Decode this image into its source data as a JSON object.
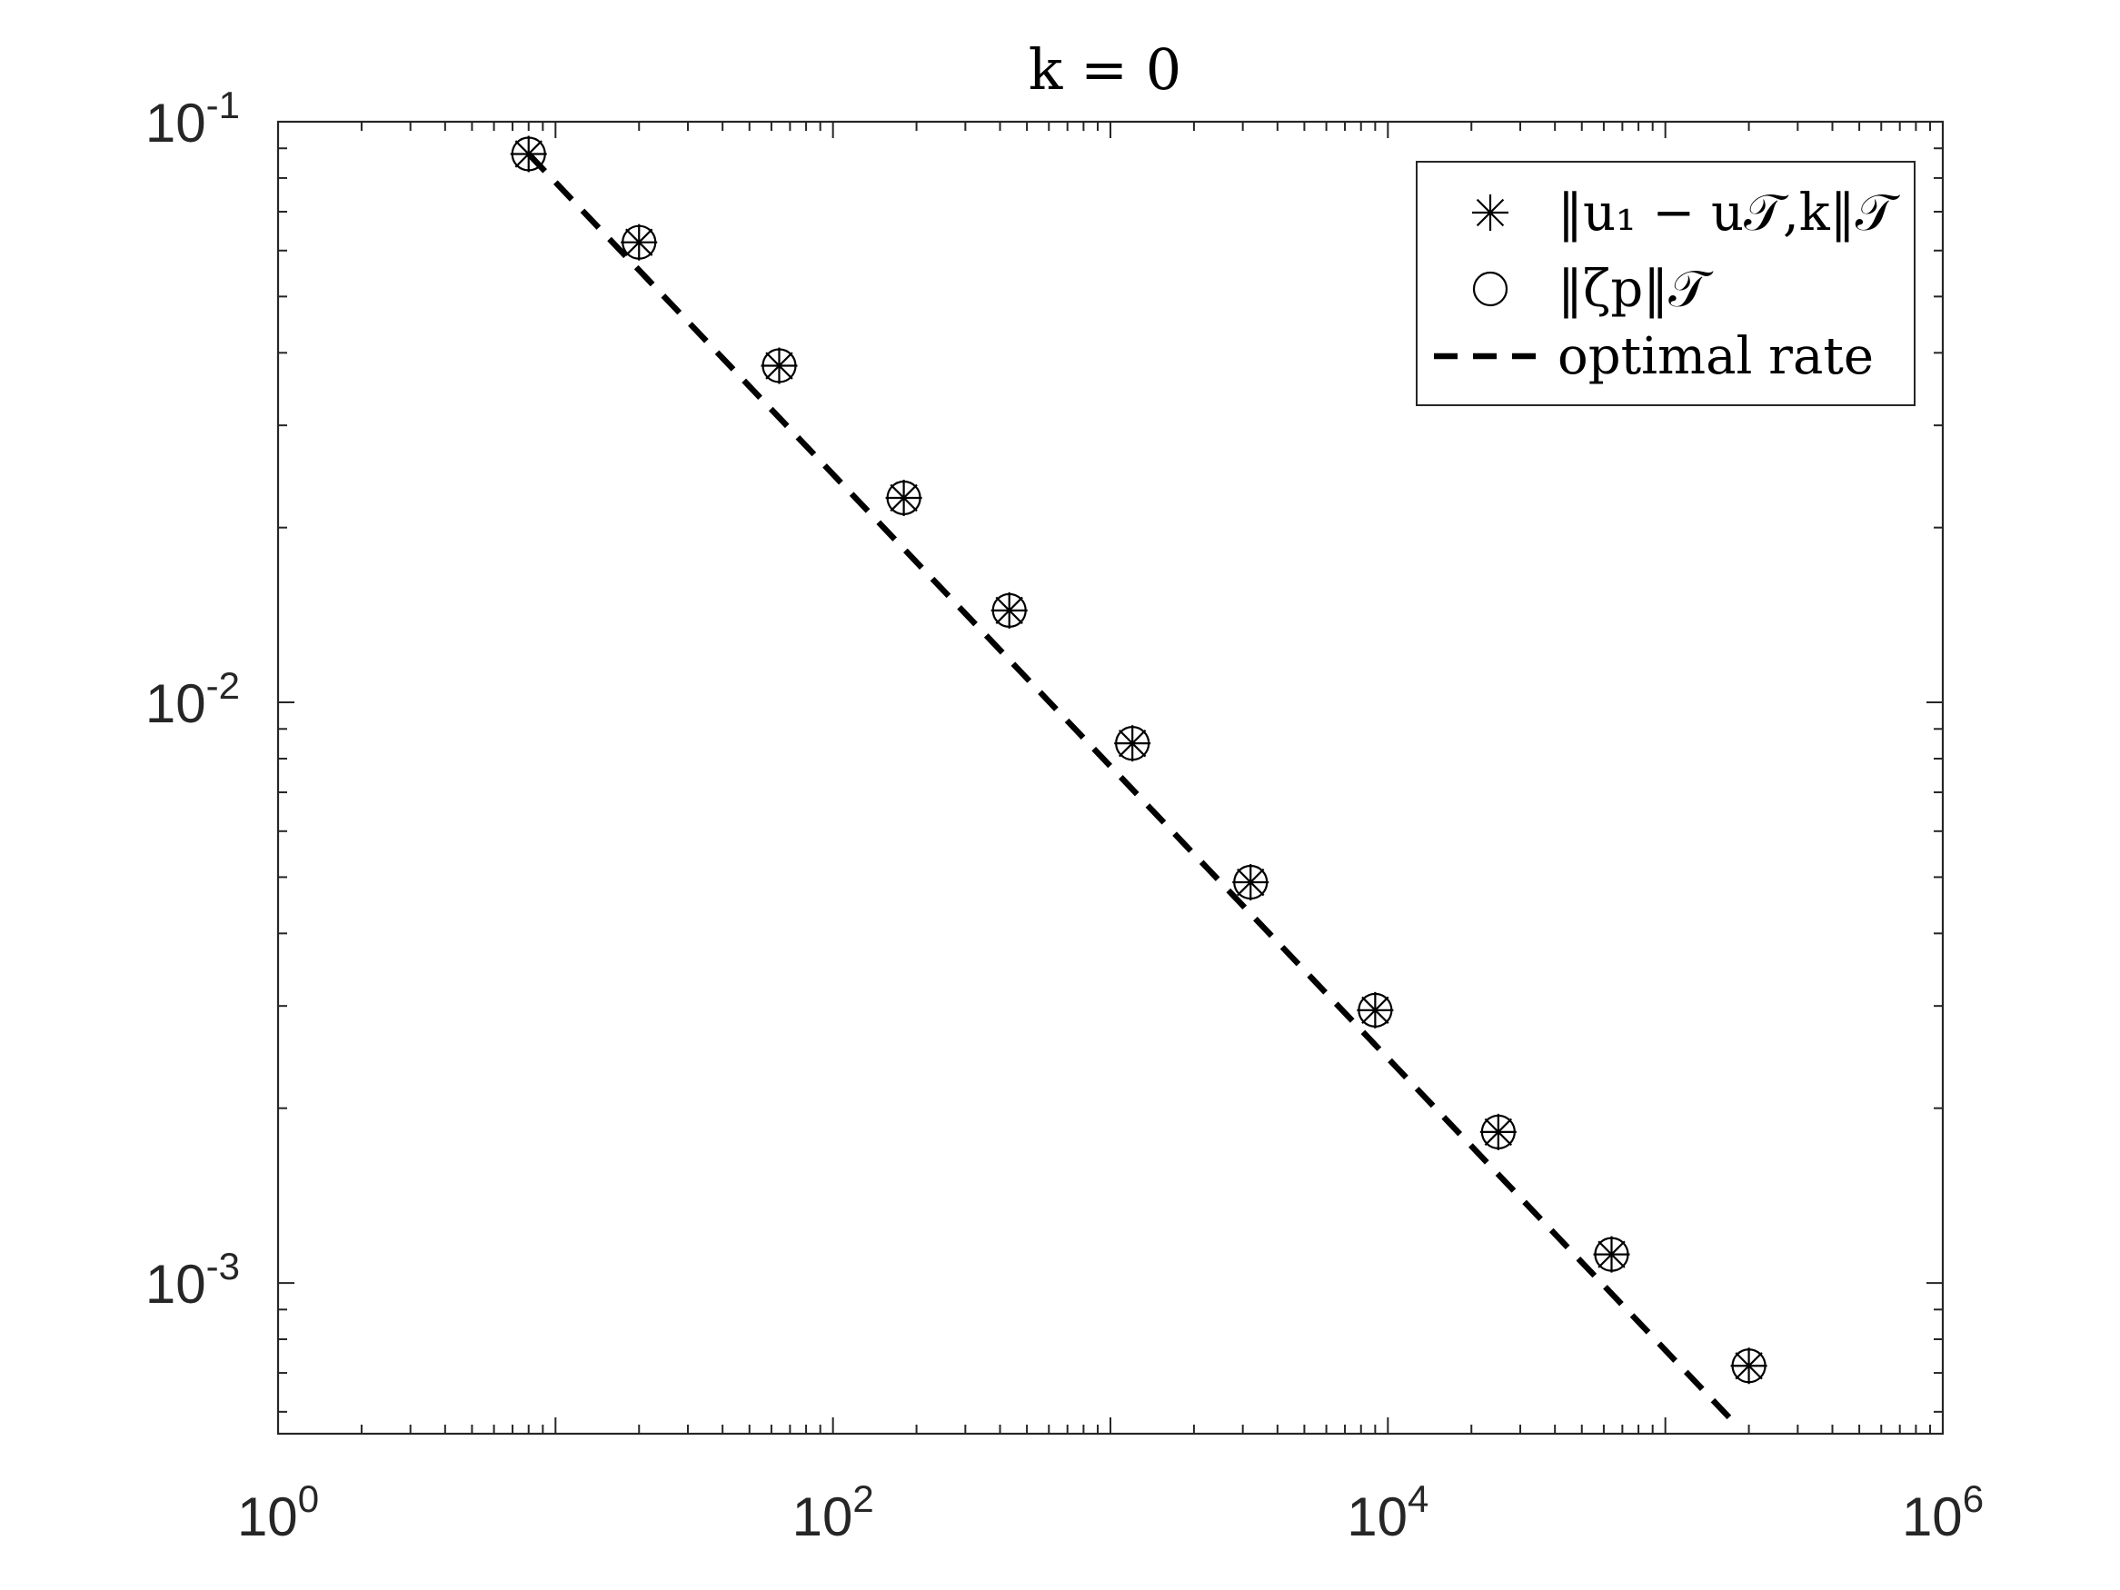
{
  "chart_data": {
    "type": "scatter",
    "title": "k = 0",
    "xlabel": "",
    "ylabel": "",
    "x_scale": "log",
    "y_scale": "log",
    "xlim": [
      1,
      1000000
    ],
    "ylim": [
      0.00055,
      0.1
    ],
    "x_ticks": [
      {
        "value": 1,
        "base": "10",
        "exp": "0"
      },
      {
        "value": 100,
        "base": "10",
        "exp": "2"
      },
      {
        "value": 10000,
        "base": "10",
        "exp": "4"
      },
      {
        "value": 1000000,
        "base": "10",
        "exp": "6"
      }
    ],
    "y_ticks": [
      {
        "value": 0.1,
        "base": "10",
        "exp": "-1"
      },
      {
        "value": 0.01,
        "base": "10",
        "exp": "-2"
      },
      {
        "value": 0.001,
        "base": "10",
        "exp": "-3"
      }
    ],
    "grid": false,
    "legend_position": "top-right",
    "series": [
      {
        "name": "‖u₁ − u𝒯,k‖𝒯",
        "marker": "asterisk",
        "color": "#000000",
        "x": [
          8,
          20,
          64,
          180,
          432,
          1200,
          3200,
          9000,
          25000,
          64000,
          200000
        ],
        "y": [
          0.088,
          0.062,
          0.038,
          0.0225,
          0.0144,
          0.0085,
          0.0049,
          0.00295,
          0.00182,
          0.00112,
          0.00072
        ]
      },
      {
        "name": "‖ζp‖𝒯",
        "marker": "circle",
        "color": "#000000",
        "x": [
          8,
          20,
          64,
          180,
          432,
          1200,
          3200,
          9000,
          25000,
          64000,
          200000
        ],
        "y": [
          0.088,
          0.062,
          0.038,
          0.0225,
          0.0144,
          0.0085,
          0.0049,
          0.00295,
          0.00182,
          0.00112,
          0.00072
        ]
      },
      {
        "name": "optimal rate",
        "marker": "none",
        "line": "dashed",
        "color": "#000000",
        "x": [
          8,
          180000
        ],
        "y": [
          0.088,
          0.00057
        ]
      }
    ]
  }
}
